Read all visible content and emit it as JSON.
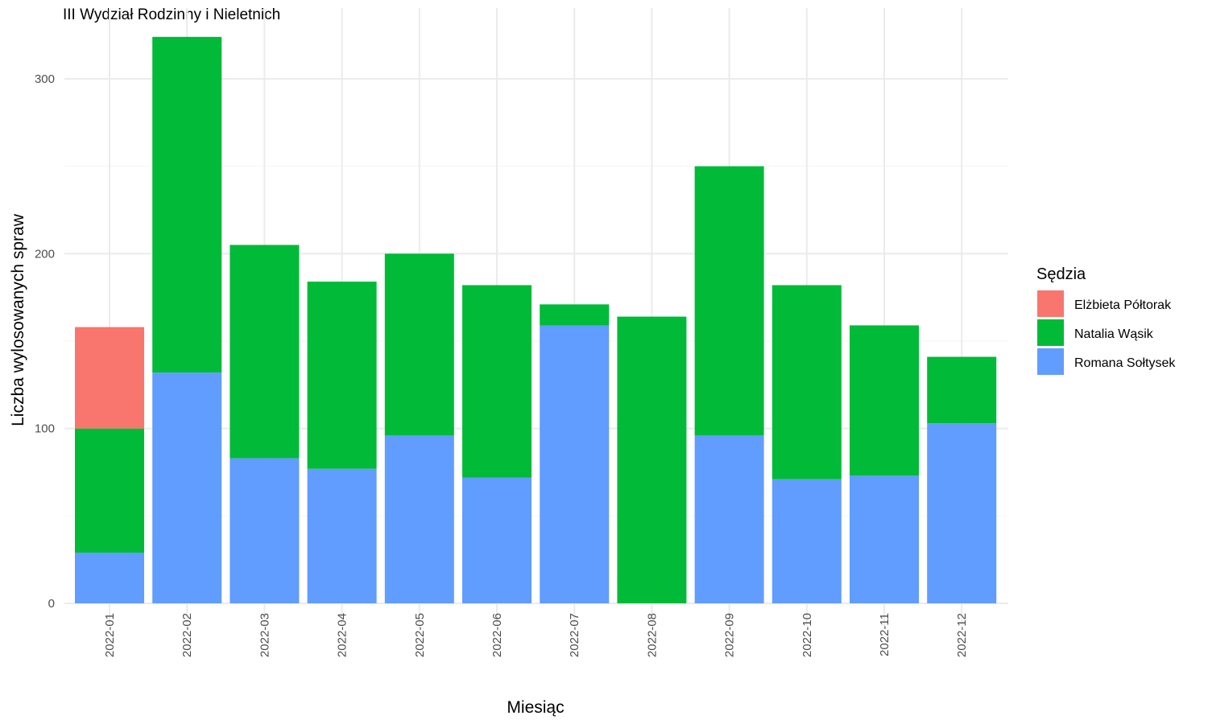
{
  "chart_data": {
    "type": "bar",
    "stacked": true,
    "title": "III Wydział Rodzinny i Nieletnich",
    "xlabel": "Miesiąc",
    "ylabel": "Liczba wylosowanych spraw",
    "ylim": [
      0,
      330
    ],
    "yticks": [
      0,
      100,
      200,
      300
    ],
    "grid": true,
    "legend_title": "Sędzia",
    "legend_position": "right",
    "categories": [
      "2022-01",
      "2022-02",
      "2022-03",
      "2022-04",
      "2022-05",
      "2022-06",
      "2022-07",
      "2022-08",
      "2022-09",
      "2022-10",
      "2022-11",
      "2022-12"
    ],
    "series": [
      {
        "name": "Romana Sołtysek",
        "color": "#619CFF",
        "values": [
          29,
          132,
          83,
          77,
          96,
          72,
          159,
          0,
          96,
          71,
          73,
          103
        ]
      },
      {
        "name": "Natalia Wąsik",
        "color": "#00BA38",
        "values": [
          71,
          192,
          122,
          107,
          104,
          110,
          12,
          164,
          154,
          111,
          86,
          38
        ]
      },
      {
        "name": "Elżbieta Półtorak",
        "color": "#F8766D",
        "values": [
          58,
          0,
          0,
          0,
          0,
          0,
          0,
          0,
          0,
          0,
          0,
          0
        ]
      }
    ],
    "legend_order": [
      "Elżbieta Półtorak",
      "Natalia Wąsik",
      "Romana Sołtysek"
    ]
  }
}
